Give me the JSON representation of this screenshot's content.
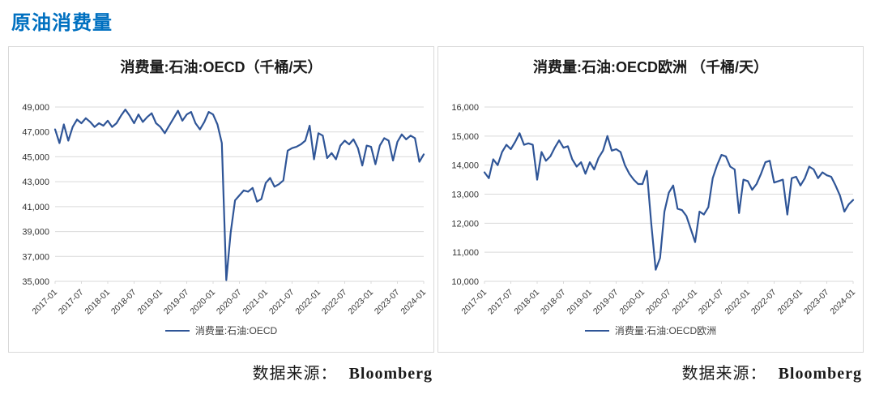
{
  "page": {
    "title": "原油消费量",
    "source_label": "数据来源：",
    "source_value": "Bloomberg",
    "accent_color": "#0070C0"
  },
  "chart_data": [
    {
      "type": "line",
      "title": "消费量:石油:OECD（千桶/天）",
      "legend": "消费量:石油:OECD",
      "line_color": "#2F5597",
      "grid": true,
      "legend_position": "bottom",
      "ylim": [
        35000,
        49000
      ],
      "ytick_step": 2000,
      "xtick_every": 6,
      "x_tick_labels": [
        "2017-01",
        "2017-07",
        "2018-01",
        "2018-07",
        "2019-01",
        "2019-07",
        "2020-01",
        "2020-07",
        "2021-01",
        "2021-07",
        "2022-01",
        "2022-07",
        "2023-01",
        "2023-07",
        "2024-01"
      ],
      "x_start": "2017-01",
      "x_freq": "monthly",
      "values": [
        47200,
        46100,
        47600,
        46300,
        47400,
        48000,
        47700,
        48100,
        47800,
        47400,
        47700,
        47500,
        47900,
        47400,
        47700,
        48300,
        48800,
        48300,
        47700,
        48400,
        47800,
        48200,
        48500,
        47700,
        47400,
        46900,
        47500,
        48100,
        48700,
        47900,
        48400,
        48600,
        47700,
        47200,
        47800,
        48600,
        48400,
        47600,
        46100,
        35100,
        38900,
        41500,
        41900,
        42300,
        42200,
        42500,
        41400,
        41600,
        42900,
        43300,
        42600,
        42800,
        43100,
        45500,
        45700,
        45800,
        46000,
        46300,
        47500,
        44800,
        46900,
        46700,
        44900,
        45300,
        44800,
        45900,
        46300,
        46000,
        46400,
        45700,
        44300,
        45900,
        45800,
        44400,
        45900,
        46500,
        46300,
        44700,
        46200,
        46800,
        46400,
        46700,
        46500,
        44600,
        45200
      ]
    },
    {
      "type": "line",
      "title": "消费量:石油:OECD欧洲 （千桶/天）",
      "legend": "消费量:石油:OECD欧洲",
      "line_color": "#2F5597",
      "grid": true,
      "legend_position": "bottom",
      "ylim": [
        10000,
        16000
      ],
      "ytick_step": 1000,
      "xtick_every": 6,
      "x_tick_labels": [
        "2017-01",
        "2017-07",
        "2018-01",
        "2018-07",
        "2019-01",
        "2019-07",
        "2020-01",
        "2020-07",
        "2021-01",
        "2021-07",
        "2022-01",
        "2022-07",
        "2023-01",
        "2023-07",
        "2024-01"
      ],
      "x_start": "2017-01",
      "x_freq": "monthly",
      "values": [
        13750,
        13550,
        14200,
        14000,
        14450,
        14700,
        14550,
        14800,
        15100,
        14700,
        14750,
        14700,
        13500,
        14450,
        14150,
        14300,
        14600,
        14850,
        14600,
        14650,
        14200,
        13950,
        14100,
        13700,
        14100,
        13850,
        14250,
        14500,
        15000,
        14500,
        14550,
        14450,
        14000,
        13700,
        13500,
        13350,
        13350,
        13800,
        12000,
        10400,
        10800,
        12400,
        13050,
        13300,
        12500,
        12450,
        12250,
        11800,
        11350,
        12400,
        12300,
        12550,
        13550,
        14000,
        14350,
        14300,
        13950,
        13850,
        12350,
        13500,
        13450,
        13150,
        13350,
        13700,
        14100,
        14150,
        13400,
        13450,
        13500,
        12300,
        13550,
        13600,
        13300,
        13550,
        13950,
        13850,
        13550,
        13750,
        13650,
        13600,
        13300,
        12950,
        12400,
        12650,
        12800
      ]
    }
  ],
  "style": {
    "grid_color": "#D9D9D9",
    "tick_label_color": "#333333",
    "chart_border_color": "#D9D9D9"
  }
}
